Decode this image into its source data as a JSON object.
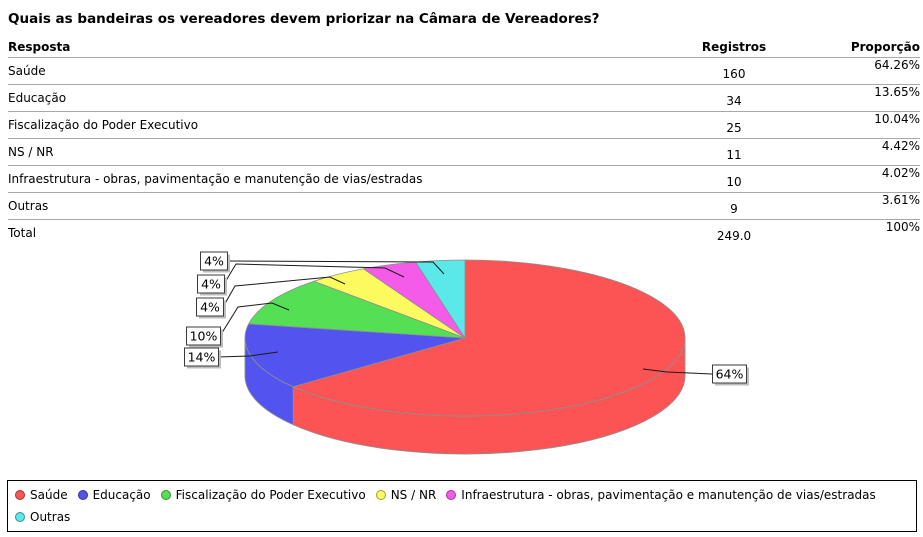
{
  "title": "Quais as bandeiras os vereadores devem priorizar na Câmara de Vereadores?",
  "table": {
    "columns": [
      "Resposta",
      "Registros",
      "Proporção"
    ],
    "rows": [
      {
        "resposta": "Saúde",
        "registros": "160",
        "proporcao": "64.26%"
      },
      {
        "resposta": "Educação",
        "registros": "34",
        "proporcao": "13.65%"
      },
      {
        "resposta": "Fiscalização do Poder Executivo",
        "registros": "25",
        "proporcao": "10.04%"
      },
      {
        "resposta": "NS / NR",
        "registros": "11",
        "proporcao": "4.42%"
      },
      {
        "resposta": "Infraestrutura - obras, pavimentação e manutenção de vias/estradas",
        "registros": "10",
        "proporcao": "4.02%"
      },
      {
        "resposta": "Outras",
        "registros": "9",
        "proporcao": "3.61%"
      }
    ],
    "total_row": {
      "resposta": "Total",
      "registros": "249.0",
      "proporcao": "100%"
    }
  },
  "chart_data": {
    "type": "pie",
    "style": "3d",
    "title": "Quais as bandeiras os vereadores devem priorizar na Câmara de Vereadores?",
    "labels": [
      "Saúde",
      "Educação",
      "Fiscalização do Poder Executivo",
      "NS / NR",
      "Infraestrutura - obras, pavimentação e manutenção de vias/estradas",
      "Outras"
    ],
    "values": [
      160,
      34,
      25,
      11,
      10,
      9
    ],
    "total": 249.0,
    "percentages": [
      64.26,
      13.65,
      10.04,
      4.42,
      4.02,
      3.61
    ],
    "percent_labels": [
      "64%",
      "14%",
      "10%",
      "4%",
      "4%",
      "4%"
    ],
    "colors": [
      "#FC5454",
      "#5353EF",
      "#55DF55",
      "#FBFB60",
      "#F45BE8",
      "#5BE8E8"
    ],
    "start_angle": "12-o-clock",
    "direction": "clockwise",
    "legend_position": "bottom"
  },
  "legend_border_color": "#000000",
  "table_line_color": "#a8a8a8"
}
